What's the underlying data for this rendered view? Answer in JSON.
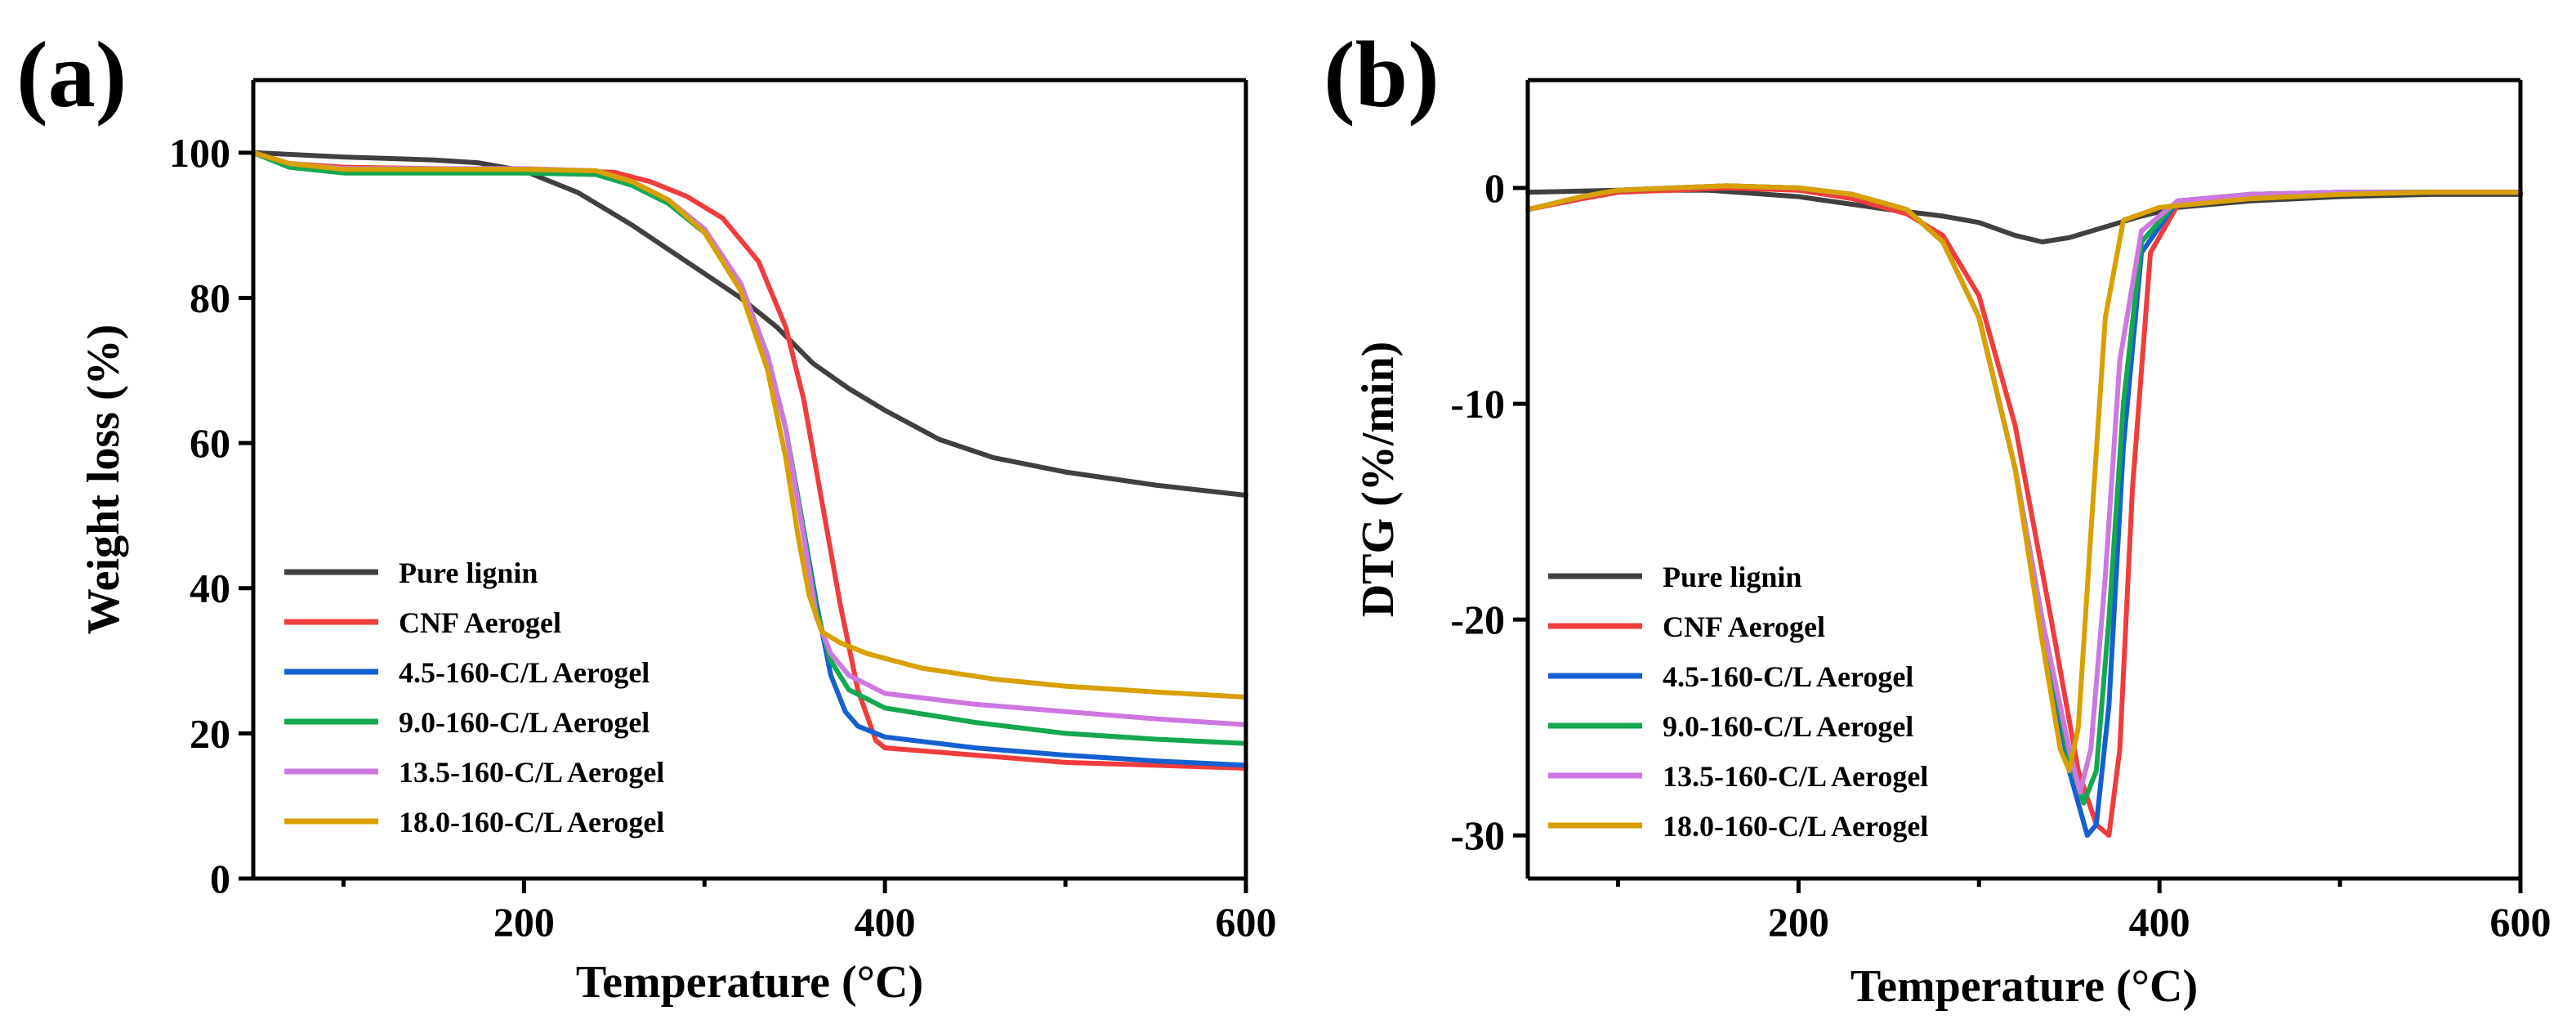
{
  "series_styles": [
    {
      "name": "Pure lignin",
      "color": "#404040"
    },
    {
      "name": "CNF Aerogel",
      "color": "#f03c3c"
    },
    {
      "name": "4.5-160-C/L Aerogel",
      "color": "#1560d0"
    },
    {
      "name": "9.0-160-C/L Aerogel",
      "color": "#14a850"
    },
    {
      "name": "13.5-160-C/L Aerogel",
      "color": "#cc78e0"
    },
    {
      "name": "18.0-160-C/L Aerogel",
      "color": "#d8a000"
    }
  ],
  "chart_data": [
    {
      "type": "line",
      "panel": "(a)",
      "xlabel": "Temperature (°C)",
      "ylabel": "Weight loss (%)",
      "xlim": [
        50,
        600
      ],
      "ylim": [
        0,
        110
      ],
      "xticks": [
        200,
        400,
        600
      ],
      "xminor": [
        100,
        300,
        500
      ],
      "yticks": [
        0,
        20,
        40,
        60,
        80,
        100
      ],
      "legend_position": "bottom-left",
      "series": [
        {
          "name": "Pure lignin",
          "x": [
            50,
            100,
            150,
            175,
            200,
            230,
            260,
            290,
            320,
            340,
            360,
            380,
            400,
            430,
            460,
            500,
            550,
            600
          ],
          "y": [
            100,
            99.4,
            99,
            98.6,
            97.5,
            94.5,
            90,
            85,
            80,
            76,
            71,
            67.5,
            64.5,
            60.5,
            58,
            56,
            54.2,
            52.8
          ]
        },
        {
          "name": "CNF Aerogel",
          "x": [
            50,
            70,
            100,
            150,
            200,
            250,
            270,
            290,
            310,
            330,
            345,
            355,
            365,
            375,
            385,
            395,
            400,
            450,
            500,
            550,
            600
          ],
          "y": [
            100,
            98.5,
            98,
            97.8,
            97.6,
            97.3,
            96,
            94,
            91,
            85,
            76,
            66,
            52,
            38,
            26,
            19,
            18,
            17,
            16,
            15.6,
            15.2
          ]
        },
        {
          "name": "4.5-160-C/L Aerogel",
          "x": [
            50,
            70,
            100,
            150,
            200,
            240,
            260,
            280,
            300,
            320,
            335,
            345,
            355,
            362,
            370,
            378,
            385,
            400,
            450,
            500,
            550,
            600
          ],
          "y": [
            100,
            98,
            97.5,
            97.3,
            97.3,
            97,
            95.5,
            93,
            89,
            82,
            72,
            62,
            48,
            38,
            28,
            23,
            21,
            19.5,
            18,
            17,
            16.2,
            15.6
          ]
        },
        {
          "name": "9.0-160-C/L Aerogel",
          "x": [
            50,
            70,
            100,
            150,
            200,
            240,
            260,
            280,
            300,
            320,
            335,
            345,
            355,
            362,
            370,
            380,
            400,
            450,
            500,
            550,
            600
          ],
          "y": [
            100,
            98,
            97.2,
            97.2,
            97.2,
            97,
            95.5,
            93,
            89,
            82,
            72,
            62,
            48,
            37,
            30,
            26,
            23.5,
            21.5,
            20,
            19.2,
            18.6
          ]
        },
        {
          "name": "13.5-160-C/L Aerogel",
          "x": [
            50,
            70,
            100,
            150,
            200,
            240,
            260,
            280,
            300,
            320,
            335,
            345,
            355,
            362,
            370,
            380,
            400,
            450,
            500,
            550,
            600
          ],
          "y": [
            100,
            98.5,
            97.8,
            97.8,
            97.8,
            97.5,
            96,
            93.5,
            89.5,
            82,
            72,
            62,
            47,
            36,
            31,
            28,
            25.5,
            24,
            23,
            22,
            21.2
          ]
        },
        {
          "name": "18.0-160-C/L Aerogel",
          "x": [
            50,
            70,
            100,
            150,
            200,
            240,
            260,
            280,
            300,
            320,
            335,
            345,
            352,
            358,
            365,
            375,
            390,
            420,
            460,
            500,
            550,
            600
          ],
          "y": [
            100,
            98.5,
            97.7,
            97.7,
            97.7,
            97.5,
            96,
            93.5,
            89,
            81,
            70,
            58,
            47,
            39,
            34,
            32.5,
            31,
            29,
            27.5,
            26.5,
            25.7,
            25
          ]
        }
      ]
    },
    {
      "type": "line",
      "panel": "(b)",
      "xlabel": "Temperature (°C)",
      "ylabel": "DTG (%/min)",
      "xlim": [
        50,
        600
      ],
      "ylim": [
        -32,
        5
      ],
      "xticks": [
        200,
        400,
        600
      ],
      "xminor": [
        100,
        300,
        500
      ],
      "yticks": [
        0,
        -10,
        -20,
        -30
      ],
      "legend_position": "bottom-left",
      "series": [
        {
          "name": "Pure lignin",
          "x": [
            50,
            100,
            150,
            200,
            250,
            280,
            300,
            320,
            335,
            350,
            370,
            390,
            410,
            450,
            500,
            550,
            600
          ],
          "y": [
            -0.2,
            -0.1,
            -0.1,
            -0.4,
            -1,
            -1.3,
            -1.6,
            -2.2,
            -2.5,
            -2.3,
            -1.8,
            -1.3,
            -0.9,
            -0.6,
            -0.4,
            -0.3,
            -0.3
          ]
        },
        {
          "name": "CNF Aerogel",
          "x": [
            50,
            80,
            100,
            130,
            160,
            200,
            230,
            260,
            280,
            300,
            320,
            340,
            355,
            365,
            372,
            378,
            385,
            395,
            410,
            450,
            500,
            550,
            600
          ],
          "y": [
            -1,
            -0.5,
            -0.2,
            -0.1,
            0,
            -0.1,
            -0.5,
            -1.2,
            -2.2,
            -5,
            -11,
            -20,
            -27,
            -29.5,
            -30,
            -26,
            -14,
            -3,
            -0.8,
            -0.3,
            -0.2,
            -0.2,
            -0.2
          ]
        },
        {
          "name": "4.5-160-C/L Aerogel",
          "x": [
            50,
            80,
            100,
            130,
            160,
            200,
            230,
            260,
            280,
            300,
            320,
            335,
            350,
            360,
            365,
            372,
            380,
            390,
            410,
            450,
            500,
            550,
            600
          ],
          "y": [
            -1,
            -0.4,
            -0.1,
            0,
            0.1,
            0,
            -0.3,
            -1,
            -2.5,
            -6,
            -13,
            -20,
            -27,
            -30,
            -29.5,
            -24,
            -12,
            -3,
            -0.6,
            -0.3,
            -0.2,
            -0.2,
            -0.2
          ]
        },
        {
          "name": "9.0-160-C/L Aerogel",
          "x": [
            50,
            80,
            100,
            130,
            160,
            200,
            230,
            260,
            280,
            300,
            320,
            335,
            350,
            358,
            365,
            372,
            380,
            390,
            410,
            450,
            500,
            550,
            600
          ],
          "y": [
            -1,
            -0.4,
            -0.1,
            0,
            0.1,
            0,
            -0.3,
            -1,
            -2.5,
            -6,
            -13,
            -20,
            -26.5,
            -28.5,
            -27,
            -20,
            -10,
            -2.5,
            -0.6,
            -0.3,
            -0.2,
            -0.2,
            -0.2
          ]
        },
        {
          "name": "13.5-160-C/L Aerogel",
          "x": [
            50,
            80,
            100,
            130,
            160,
            200,
            230,
            260,
            280,
            300,
            320,
            335,
            350,
            356,
            362,
            370,
            378,
            390,
            410,
            450,
            500,
            550,
            600
          ],
          "y": [
            -1,
            -0.4,
            -0.1,
            0,
            0.1,
            0,
            -0.3,
            -1,
            -2.5,
            -6,
            -13,
            -20,
            -26,
            -28,
            -26,
            -18,
            -8,
            -2,
            -0.6,
            -0.3,
            -0.2,
            -0.2,
            -0.2
          ]
        },
        {
          "name": "18.0-160-C/L Aerogel",
          "x": [
            50,
            80,
            100,
            130,
            160,
            200,
            230,
            260,
            280,
            300,
            320,
            335,
            345,
            350,
            355,
            362,
            370,
            380,
            400,
            450,
            500,
            550,
            600
          ],
          "y": [
            -1,
            -0.4,
            -0.1,
            0,
            0.1,
            0,
            -0.3,
            -1,
            -2.5,
            -6,
            -13,
            -21,
            -26,
            -27,
            -25,
            -16,
            -6,
            -1.5,
            -0.9,
            -0.5,
            -0.3,
            -0.2,
            -0.2
          ]
        }
      ]
    }
  ]
}
